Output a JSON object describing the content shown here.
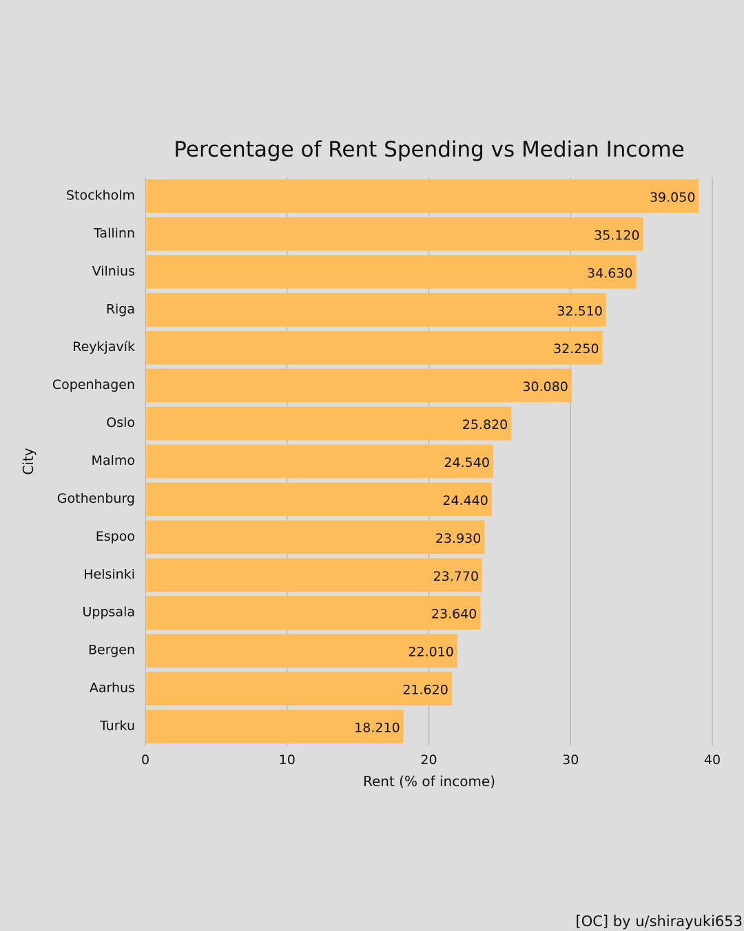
{
  "credit": "[OC] by u/shirayuki653",
  "colors": {
    "background": "#dddddd",
    "bar": "#ffbd59",
    "grid": "#b9b9b9",
    "text": "#111111"
  },
  "chart_data": {
    "type": "bar",
    "orientation": "horizontal",
    "title": "Percentage of Rent Spending vs Median Income",
    "xlabel": "Rent (% of income)",
    "ylabel": "City",
    "xlim": [
      0,
      40
    ],
    "xticks": [
      0,
      10,
      20,
      30,
      40
    ],
    "grid": "vertical",
    "categories": [
      "Stockholm",
      "Tallinn",
      "Vilnius",
      "Riga",
      "Reykjavík",
      "Copenhagen",
      "Oslo",
      "Malmo",
      "Gothenburg",
      "Espoo",
      "Helsinki",
      "Uppsala",
      "Bergen",
      "Aarhus",
      "Turku"
    ],
    "values": [
      39.05,
      35.12,
      34.63,
      32.51,
      32.25,
      30.08,
      25.82,
      24.54,
      24.44,
      23.93,
      23.77,
      23.64,
      22.01,
      21.62,
      18.21
    ],
    "labels": [
      "39.050",
      "35.120",
      "34.630",
      "32.510",
      "32.250",
      "30.080",
      "25.820",
      "24.540",
      "24.440",
      "23.930",
      "23.770",
      "23.640",
      "22.010",
      "21.620",
      "18.210"
    ]
  }
}
